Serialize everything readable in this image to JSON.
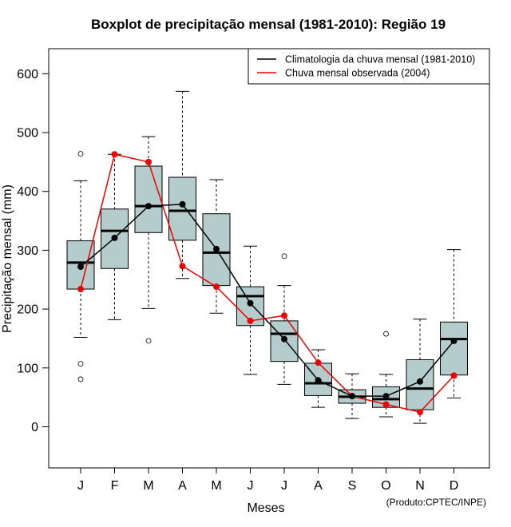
{
  "chart_data": {
    "type": "boxplot",
    "title": "Boxplot de precipitação mensal (1981-2010): Região 19",
    "xlabel": "Meses",
    "ylabel": "Precipitação mensal (mm)",
    "ylim": [
      -70,
      645
    ],
    "yticks": [
      0,
      100,
      200,
      300,
      400,
      500,
      600
    ],
    "categories": [
      "J",
      "F",
      "M",
      "A",
      "M",
      "J",
      "J",
      "A",
      "S",
      "O",
      "N",
      "D"
    ],
    "boxes": [
      {
        "whisker_low": 152,
        "q1": 234,
        "median": 279,
        "q3": 316,
        "whisker_high": 418,
        "outliers": [
          464,
          107,
          81
        ]
      },
      {
        "whisker_low": 182,
        "q1": 269,
        "median": 333,
        "q3": 370,
        "whisker_high": 463,
        "outliers": []
      },
      {
        "whisker_low": 201,
        "q1": 330,
        "median": 375,
        "q3": 443,
        "whisker_high": 493,
        "outliers": [
          146
        ]
      },
      {
        "whisker_low": 252,
        "q1": 317,
        "median": 367,
        "q3": 424,
        "whisker_high": 570,
        "outliers": []
      },
      {
        "whisker_low": 193,
        "q1": 240,
        "median": 296,
        "q3": 362,
        "whisker_high": 420,
        "outliers": []
      },
      {
        "whisker_low": 89,
        "q1": 172,
        "median": 222,
        "q3": 238,
        "whisker_high": 307,
        "outliers": []
      },
      {
        "whisker_low": 72,
        "q1": 111,
        "median": 158,
        "q3": 180,
        "whisker_high": 240,
        "outliers": [
          290
        ]
      },
      {
        "whisker_low": 33,
        "q1": 53,
        "median": 74,
        "q3": 108,
        "whisker_high": 131,
        "outliers": []
      },
      {
        "whisker_low": 14,
        "q1": 40,
        "median": 51,
        "q3": 63,
        "whisker_high": 90,
        "outliers": []
      },
      {
        "whisker_low": 17,
        "q1": 33,
        "median": 47,
        "q3": 68,
        "whisker_high": 89,
        "outliers": [
          158
        ]
      },
      {
        "whisker_low": 6,
        "q1": 29,
        "median": 65,
        "q3": 114,
        "whisker_high": 183,
        "outliers": []
      },
      {
        "whisker_low": 49,
        "q1": 88,
        "median": 149,
        "q3": 178,
        "whisker_high": 301,
        "outliers": []
      }
    ],
    "series": [
      {
        "name": "Climatologia da chuva mensal (1981-2010)",
        "color": "#000000",
        "values": [
          272,
          321,
          375,
          378,
          302,
          210,
          149,
          79,
          52,
          52,
          77,
          146
        ]
      },
      {
        "name": "Chuva mensal observada (2004)",
        "color": "#ee0000",
        "values": [
          234,
          463,
          450,
          273,
          238,
          180,
          189,
          109,
          52,
          38,
          25,
          87
        ]
      }
    ],
    "box_color": "#b4cccb",
    "legend_position": "top-right",
    "credit": "(Produto:CPTEC/INPE)"
  }
}
